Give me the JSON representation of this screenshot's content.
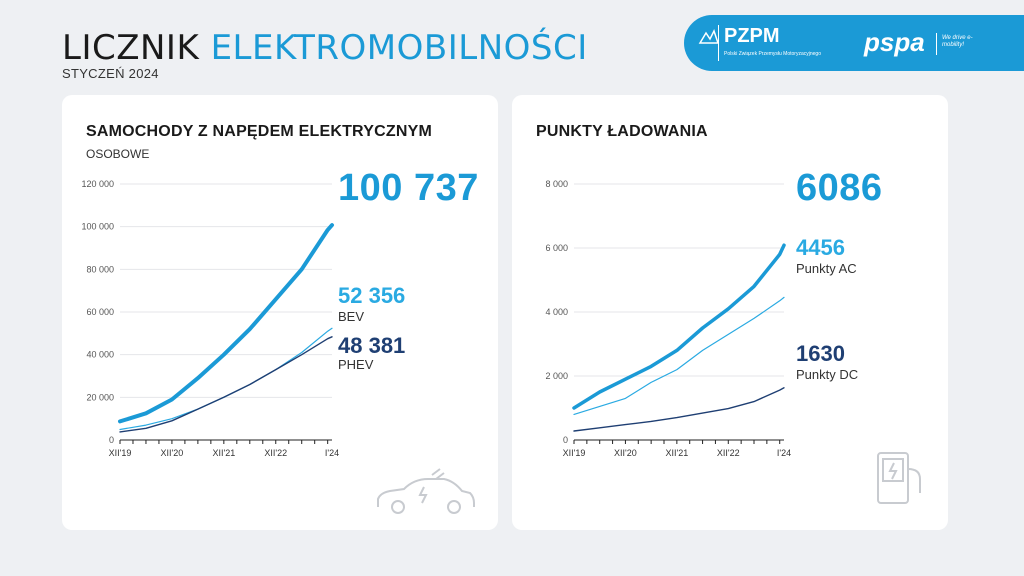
{
  "header": {
    "title_part1": "LICZNIK",
    "title_part2": "ELEKTROMOBILNOŚCI",
    "subtitle": "STYCZEŃ 2024",
    "logo_pzpm": "PZPM",
    "logo_pzpm_sub": "Polski Związek Przemysłu Motoryzacyjnego",
    "logo_pspa": "pspa",
    "logo_pspa_tagline": "We drive e-mobility!"
  },
  "colors": {
    "light": "#2aaae2",
    "heavy": "#1b9ad6",
    "dark": "#1f3f73"
  },
  "cars": {
    "title": "SAMOCHODY Z NAPĘDEM ELEKTRYCZNYM",
    "subtitle": "OSOBOWE",
    "total": "100 737",
    "bev_value": "52 356",
    "bev_label": "BEV",
    "phev_value": "48 381",
    "phev_label": "PHEV"
  },
  "charging": {
    "title": "PUNKTY ŁADOWANIA",
    "total": "6086",
    "ac_value": "4456",
    "ac_label": "Punkty AC",
    "dc_value": "1630",
    "dc_label": "Punkty DC"
  },
  "chart_data": [
    {
      "type": "line",
      "y_ticks": [
        "0",
        "20 000",
        "40 000",
        "60 000",
        "80 000",
        "100 000",
        "120 000"
      ],
      "x_ticks": [
        "XII'19",
        "XII'20",
        "XII'21",
        "XII'22",
        "I'24"
      ],
      "ylim": [
        0,
        120000
      ],
      "x": [
        0,
        6,
        12,
        18,
        24,
        30,
        36,
        42,
        48,
        49
      ],
      "series": [
        {
          "name": "total",
          "values": [
            8700,
            12500,
            19000,
            29000,
            40000,
            52000,
            66000,
            80000,
            98500,
            100737
          ]
        },
        {
          "name": "BEV",
          "values": [
            4900,
            7000,
            10000,
            14500,
            20000,
            26000,
            33000,
            41000,
            51000,
            52356
          ]
        },
        {
          "name": "PHEV",
          "values": [
            3800,
            5500,
            9000,
            14500,
            20000,
            26000,
            33000,
            40000,
            47500,
            48381
          ]
        }
      ]
    },
    {
      "type": "line",
      "y_ticks": [
        "0",
        "2 000",
        "4 000",
        "6 000",
        "8 000"
      ],
      "x_ticks": [
        "XII'19",
        "XII'20",
        "XII'21",
        "XII'22",
        "I'24"
      ],
      "ylim": [
        0,
        8000
      ],
      "x": [
        0,
        6,
        12,
        18,
        24,
        30,
        36,
        42,
        48,
        49
      ],
      "series": [
        {
          "name": "Punkty AC",
          "values": [
            800,
            1050,
            1300,
            1800,
            2200,
            2800,
            3300,
            3800,
            4350,
            4456
          ]
        },
        {
          "name": "Punkty DC",
          "values": [
            280,
            380,
            480,
            580,
            700,
            840,
            980,
            1200,
            1560,
            1630
          ]
        },
        {
          "name": "total",
          "values": [
            1000,
            1500,
            1900,
            2300,
            2800,
            3500,
            4100,
            4800,
            5800,
            6086
          ]
        }
      ]
    }
  ]
}
